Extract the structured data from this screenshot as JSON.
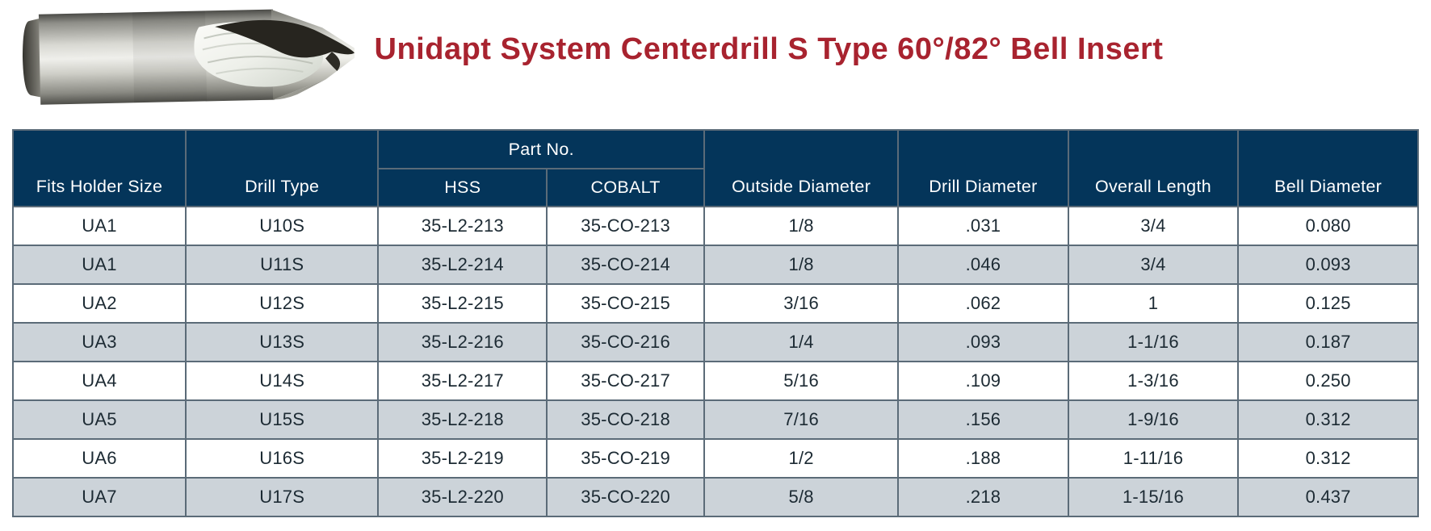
{
  "colors": {
    "header-bg": "#04355a",
    "header-text": "#ffffff",
    "row-bg": "#ffffff",
    "row-alt-bg": "#ccd3d9",
    "border": "#5b6b78",
    "outer-border": "#4a565f",
    "cell-text": "#1c2a33",
    "title": "#a8232f"
  },
  "page": {
    "title": "Unidapt System Centerdrill S Type 60°/82° Bell Insert"
  },
  "product_image": {
    "name": "centerdrill-photo"
  },
  "table": {
    "header": {
      "part_no_group": "Part No.",
      "columns": [
        "Fits Holder Size",
        "Drill Type",
        "HSS",
        "COBALT",
        "Outside Diameter",
        "Drill Diameter",
        "Overall Length",
        "Bell Diameter"
      ]
    },
    "rows": [
      [
        "UA1",
        "U10S",
        "35-L2-213",
        "35-CO-213",
        "1/8",
        ".031",
        "3/4",
        "0.080"
      ],
      [
        "UA1",
        "U11S",
        "35-L2-214",
        "35-CO-214",
        "1/8",
        ".046",
        "3/4",
        "0.093"
      ],
      [
        "UA2",
        "U12S",
        "35-L2-215",
        "35-CO-215",
        "3/16",
        ".062",
        "1",
        "0.125"
      ],
      [
        "UA3",
        "U13S",
        "35-L2-216",
        "35-CO-216",
        "1/4",
        ".093",
        "1-1/16",
        "0.187"
      ],
      [
        "UA4",
        "U14S",
        "35-L2-217",
        "35-CO-217",
        "5/16",
        ".109",
        "1-3/16",
        "0.250"
      ],
      [
        "UA5",
        "U15S",
        "35-L2-218",
        "35-CO-218",
        "7/16",
        ".156",
        "1-9/16",
        "0.312"
      ],
      [
        "UA6",
        "U16S",
        "35-L2-219",
        "35-CO-219",
        "1/2",
        ".188",
        "1-11/16",
        "0.312"
      ],
      [
        "UA7",
        "U17S",
        "35-L2-220",
        "35-CO-220",
        "5/8",
        ".218",
        "1-15/16",
        "0.437"
      ]
    ]
  }
}
